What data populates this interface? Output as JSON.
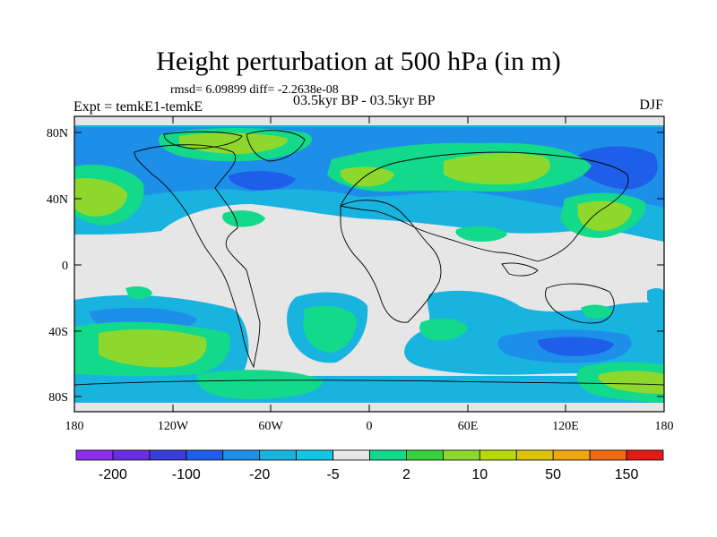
{
  "title": "Height perturbation at 500 hPa (in m)",
  "stats_line": "rmsd= 6.09899  diff= -2.2638e-08",
  "experiment_label": "Expt = temkE1-temkE",
  "period_label": "03.5kyr BP - 03.5kyr BP",
  "season_label": "DJF",
  "lat_ticks": [
    "80N",
    "40N",
    "0",
    "40S",
    "80S"
  ],
  "lon_ticks": [
    "180",
    "120W",
    "60W",
    "0",
    "60E",
    "120E",
    "180"
  ],
  "colorbar": {
    "colors": [
      "#8c2eea",
      "#6a2ee0",
      "#3a3ed8",
      "#1f5ee8",
      "#1e8fe8",
      "#19b3e0",
      "#14c6e6",
      "#e6e6e6",
      "#13d98a",
      "#36d23c",
      "#8ed82e",
      "#b8d80c",
      "#dcc20c",
      "#f0a612",
      "#f06a12",
      "#e01c14"
    ],
    "labels": [
      "-200",
      "-100",
      "-20",
      "-5",
      "2",
      "10",
      "50",
      "150"
    ]
  },
  "fill_colors": {
    "neutral": "#e6e6e6",
    "light_blue": "#19b3e0",
    "blue": "#1e8fe8",
    "dark_blue": "#1f5ee8",
    "green": "#13d98a",
    "yellow_green": "#8ed82e",
    "olive": "#b8d80c",
    "yellow": "#dcc20c"
  }
}
